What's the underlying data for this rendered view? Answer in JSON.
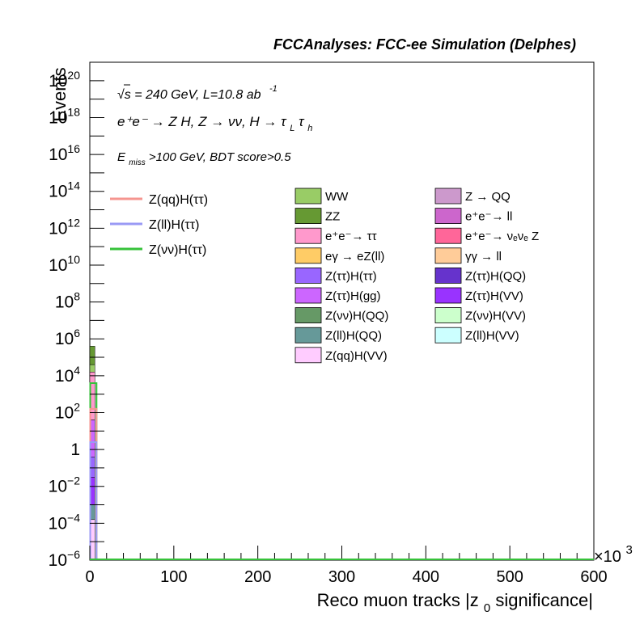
{
  "chart_data": {
    "type": "bar",
    "title": "FCCAnalyses: FCC-ee Simulation (Delphes)",
    "xlabel": "Reco muon tracks |z",
    "xlabel_sub": "0",
    "xlabel_tail": " significance|",
    "ylabel": "Events",
    "x_multiplier": "×10",
    "x_multiplier_exp": "3",
    "xlim": [
      0,
      600
    ],
    "ylim_log10": [
      -6,
      21
    ],
    "y_scale": "log",
    "grid": false,
    "x_ticks": [
      "0",
      "100",
      "200",
      "300",
      "400",
      "500",
      "600"
    ],
    "x_tick_values": [
      0,
      100,
      200,
      300,
      400,
      500,
      600
    ],
    "y_ticks": [
      {
        "exp": -6,
        "base": "10",
        "sup": "−6"
      },
      {
        "exp": -4,
        "base": "10",
        "sup": "−4"
      },
      {
        "exp": -2,
        "base": "10",
        "sup": "−2"
      },
      {
        "exp": 0,
        "base": "1",
        "sup": ""
      },
      {
        "exp": 2,
        "base": "10",
        "sup": "2"
      },
      {
        "exp": 4,
        "base": "10",
        "sup": "4"
      },
      {
        "exp": 6,
        "base": "10",
        "sup": "6"
      },
      {
        "exp": 8,
        "base": "10",
        "sup": "8"
      },
      {
        "exp": 10,
        "base": "10",
        "sup": "10"
      },
      {
        "exp": 12,
        "base": "10",
        "sup": "12"
      },
      {
        "exp": 14,
        "base": "10",
        "sup": "14"
      },
      {
        "exp": 16,
        "base": "10",
        "sup": "16"
      },
      {
        "exp": 18,
        "base": "10",
        "sup": "18"
      },
      {
        "exp": 20,
        "base": "10",
        "sup": "20"
      }
    ],
    "annotations": {
      "energy": "√s = 240 GeV, L=10.8 ab",
      "energy_sup": "-1",
      "process": "e⁺e⁻ → Z H, Z → νν, H → τ",
      "process_sub_1": "L",
      "process_tau": "τ",
      "process_sub_2": "h",
      "selection": "E",
      "selection_sub": "miss",
      "selection_tail": ">100 GeV, BDT score>0.5"
    },
    "signal_series": [
      {
        "name": "Z(qq)H(ττ)",
        "color": "#f5958f"
      },
      {
        "name": "Z(ll)H(ττ)",
        "color": "#9a9af5"
      },
      {
        "name": "Z(νν)H(ττ)",
        "color": "#36c23a"
      }
    ],
    "background_legend": [
      {
        "name": "WW",
        "color": "#99cc66"
      },
      {
        "name": "Z → QQ",
        "color": "#cc99cc"
      },
      {
        "name": "ZZ",
        "color": "#669933"
      },
      {
        "name": "e⁺e⁻→ ll",
        "color": "#cc66cc"
      },
      {
        "name": "e⁺e⁻→ ττ",
        "color": "#ff99cc"
      },
      {
        "name": "e⁺e⁻→ νₑνₑ Z",
        "color": "#ff6699"
      },
      {
        "name": "eγ → eZ(ll)",
        "color": "#ffcc66"
      },
      {
        "name": "γγ → ll",
        "color": "#ffcc99"
      },
      {
        "name": "Z(ττ)H(ττ)",
        "color": "#9966ff"
      },
      {
        "name": "Z(ττ)H(QQ)",
        "color": "#6633cc"
      },
      {
        "name": "Z(ττ)H(gg)",
        "color": "#cc66ff"
      },
      {
        "name": "Z(ττ)H(VV)",
        "color": "#9933ff"
      },
      {
        "name": "Z(νν)H(QQ)",
        "color": "#669966"
      },
      {
        "name": "Z(νν)H(VV)",
        "color": "#ccffcc"
      },
      {
        "name": "Z(ll)H(QQ)",
        "color": "#669999"
      },
      {
        "name": "Z(ll)H(VV)",
        "color": "#ccffff"
      },
      {
        "name": "Z(qq)H(VV)",
        "color": "#ffccff"
      }
    ],
    "stack_first_bin": {
      "x_range": [
        0,
        6
      ],
      "segments": [
        {
          "name": "ZZ",
          "color": "#669933",
          "top_log10": 5.6
        },
        {
          "name": "WW",
          "color": "#99cc66",
          "top_log10": 4.6
        },
        {
          "name": "e⁺e⁻→ ττ",
          "color": "#ff99cc",
          "top_log10": 4.2
        },
        {
          "name": "Z(ττ)H(gg)",
          "color": "#cc66ff",
          "top_log10": 1.6
        },
        {
          "name": "Z(ττ)H(ττ)",
          "color": "#9966ff",
          "top_log10": -0.4
        },
        {
          "name": "Z(ττ)H(VV)",
          "color": "#9933ff",
          "top_log10": -1.5
        },
        {
          "name": "Z(ll)H(QQ)",
          "color": "#669999",
          "top_log10": -3.0
        },
        {
          "name": "Z(qq)H(VV)",
          "color": "#ffccff",
          "top_log10": -3.8
        }
      ]
    },
    "signal_first_bin": {
      "x_range": [
        0,
        8
      ],
      "lines": [
        {
          "name": "Z(νν)H(ττ)",
          "color": "#36c23a",
          "top_log10": 3.6
        },
        {
          "name": "Z(qq)H(ττ)",
          "color": "#f5958f",
          "top_log10": 2.2
        },
        {
          "name": "Z(ll)H(ττ)",
          "color": "#9a9af5",
          "top_log10": 0.4
        }
      ]
    }
  }
}
